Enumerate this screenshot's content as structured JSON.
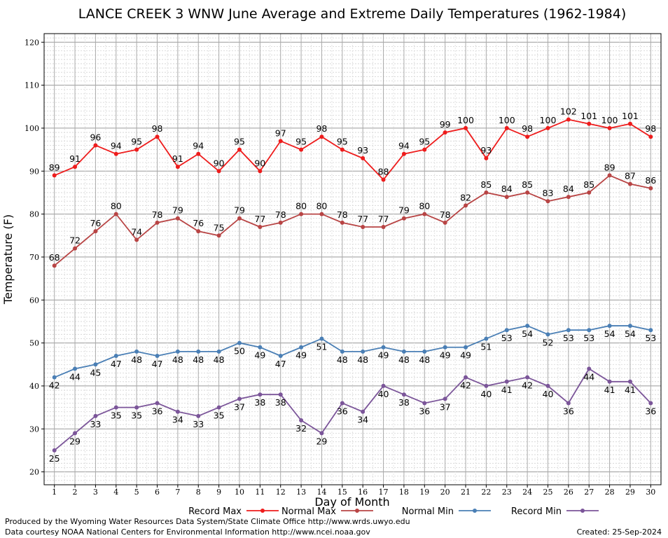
{
  "chart_data": {
    "type": "line",
    "title": "LANCE CREEK 3 WNW June Average and Extreme Daily Temperatures (1962-1984)",
    "xlabel": "Day of Month",
    "ylabel": "Temperature (F)",
    "x": [
      1,
      2,
      3,
      4,
      5,
      6,
      7,
      8,
      9,
      10,
      11,
      12,
      13,
      14,
      15,
      16,
      17,
      18,
      19,
      20,
      21,
      22,
      23,
      24,
      25,
      26,
      27,
      28,
      29,
      30
    ],
    "xlim": [
      0.5,
      30.5
    ],
    "ylim": [
      17,
      122
    ],
    "yticks": [
      20,
      30,
      40,
      50,
      60,
      70,
      80,
      90,
      100,
      110,
      120
    ],
    "grid": true,
    "legend_position": "bottom",
    "series": [
      {
        "name": "Record Max",
        "color": "#ee1c1c",
        "label_position": "above",
        "values": [
          89,
          91,
          96,
          94,
          95,
          98,
          91,
          94,
          90,
          95,
          90,
          97,
          95,
          98,
          95,
          93,
          88,
          94,
          95,
          99,
          100,
          93,
          100,
          98,
          100,
          102,
          101,
          100,
          101,
          98
        ]
      },
      {
        "name": "Normal Max",
        "color": "#b84444",
        "label_position": "above",
        "values": [
          68,
          72,
          76,
          80,
          74,
          78,
          79,
          76,
          75,
          79,
          77,
          78,
          80,
          80,
          78,
          77,
          77,
          79,
          80,
          78,
          82,
          85,
          84,
          85,
          83,
          84,
          85,
          89,
          87,
          86
        ]
      },
      {
        "name": "Normal Min",
        "color": "#4a7fb5",
        "label_position": "below",
        "values": [
          42,
          44,
          45,
          47,
          48,
          47,
          48,
          48,
          48,
          50,
          49,
          47,
          49,
          51,
          48,
          48,
          49,
          48,
          48,
          49,
          49,
          51,
          53,
          54,
          52,
          53,
          53,
          54,
          54,
          53
        ]
      },
      {
        "name": "Record Min",
        "color": "#7b5599",
        "label_position": "below",
        "values": [
          25,
          29,
          33,
          35,
          35,
          36,
          34,
          33,
          35,
          37,
          38,
          38,
          32,
          29,
          36,
          34,
          40,
          38,
          36,
          37,
          42,
          40,
          41,
          42,
          40,
          36,
          44,
          41,
          41,
          36
        ]
      }
    ]
  },
  "footer": {
    "produced_by": "Produced by the Wyoming Water Resources Data System/State Climate Office http://www.wrds.uwyo.edu",
    "courtesy": "Data courtesy NOAA National Centers for Environmental Information http://www.ncei.noaa.gov",
    "created": "Created:  25-Sep-2024"
  }
}
